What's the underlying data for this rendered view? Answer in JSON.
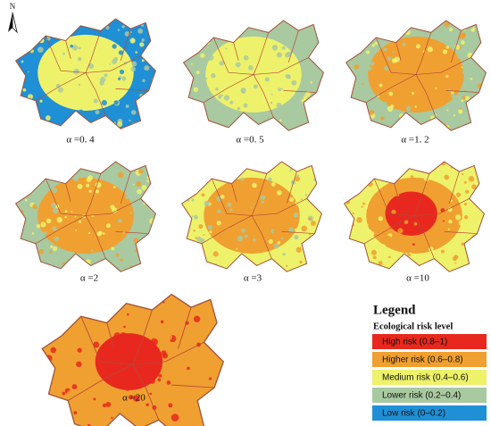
{
  "north": "N",
  "panels": [
    {
      "label": "α =0. 4"
    },
    {
      "label": "α =0. 5"
    },
    {
      "label": "α =1. 2"
    },
    {
      "label": "α =2"
    },
    {
      "label": "α =3"
    },
    {
      "label": "α =10"
    },
    {
      "label": "α =20"
    }
  ],
  "legend": {
    "title": "Legend",
    "subtitle": "Ecological risk level",
    "items": [
      {
        "label": "High risk (0.8–1)",
        "color": "#e8281e"
      },
      {
        "label": "Higher risk (0.6–0.8)",
        "color": "#f0a030"
      },
      {
        "label": "Medium risk (0.4–0.6)",
        "color": "#eef26a"
      },
      {
        "label": "Lower risk (0.2–0.4)",
        "color": "#a9c9a0"
      },
      {
        "label": "Low risk (0–0.2)",
        "color": "#1f8fd6"
      }
    ]
  }
}
